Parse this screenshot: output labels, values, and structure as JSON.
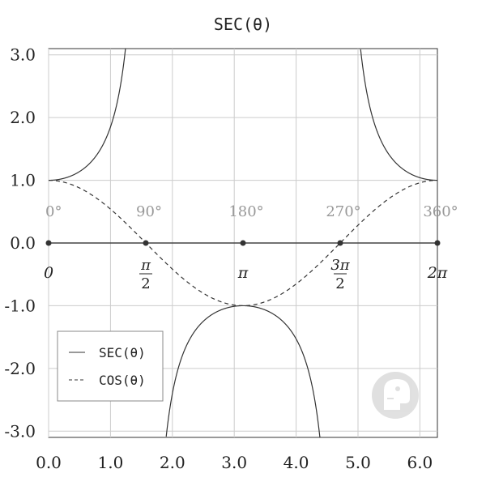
{
  "chart_data": {
    "type": "line",
    "title": "SEC(θ)",
    "xlabel": "",
    "ylabel": "",
    "xlim": [
      0.0,
      6.283
    ],
    "ylim": [
      -3.1,
      3.1
    ],
    "x_ticks": [
      0,
      1,
      2,
      3,
      4,
      5,
      6
    ],
    "x_tick_labels": [
      "0.0",
      "1.0",
      "2.0",
      "3.0",
      "4.0",
      "5.0",
      "6.0"
    ],
    "y_ticks": [
      3,
      2,
      1,
      0,
      -1,
      -2,
      -3
    ],
    "y_tick_labels": [
      "3.0",
      "2.0",
      "1.0",
      "0.0",
      "-1.0",
      "-2.0",
      "-3.0"
    ],
    "grid": true,
    "legend_position": "bottom-left",
    "degree_labels": [
      "0°",
      "90°",
      "180°",
      "270°",
      "360°"
    ],
    "radian_points": [
      0,
      1.5708,
      3.1416,
      4.7124,
      6.2832
    ],
    "radian_labels": [
      {
        "text": "0"
      },
      {
        "num": "π",
        "den": "2"
      },
      {
        "text": "π"
      },
      {
        "num": "3π",
        "den": "2"
      },
      {
        "text": "2π"
      }
    ],
    "series": [
      {
        "name": "SEC(θ)",
        "style": "solid",
        "function": "sec",
        "color": "#333333",
        "points": [
          [
            0,
            1.0
          ],
          [
            0.5,
            1.139
          ],
          [
            1.0,
            1.851
          ],
          [
            1.2,
            2.76
          ],
          [
            1.25,
            3.171
          ],
          [
            1.9,
            -3.086
          ],
          [
            2.2,
            -1.704
          ],
          [
            2.6,
            -1.166
          ],
          [
            3.1416,
            -1.0
          ],
          [
            3.6,
            -1.114
          ],
          [
            4.0,
            -1.53
          ],
          [
            4.4,
            -3.254
          ],
          [
            5.05,
            3.022
          ],
          [
            5.5,
            1.411
          ],
          [
            6.2832,
            1.0
          ]
        ]
      },
      {
        "name": "COS(θ)",
        "style": "dashed",
        "function": "cos",
        "color": "#333333",
        "points": [
          [
            0,
            1.0
          ],
          [
            0.7854,
            0.707
          ],
          [
            1.5708,
            0.0
          ],
          [
            2.3562,
            -0.707
          ],
          [
            3.1416,
            -1.0
          ],
          [
            3.927,
            -0.707
          ],
          [
            4.7124,
            0.0
          ],
          [
            5.4978,
            0.707
          ],
          [
            6.2832,
            1.0
          ]
        ]
      }
    ]
  }
}
